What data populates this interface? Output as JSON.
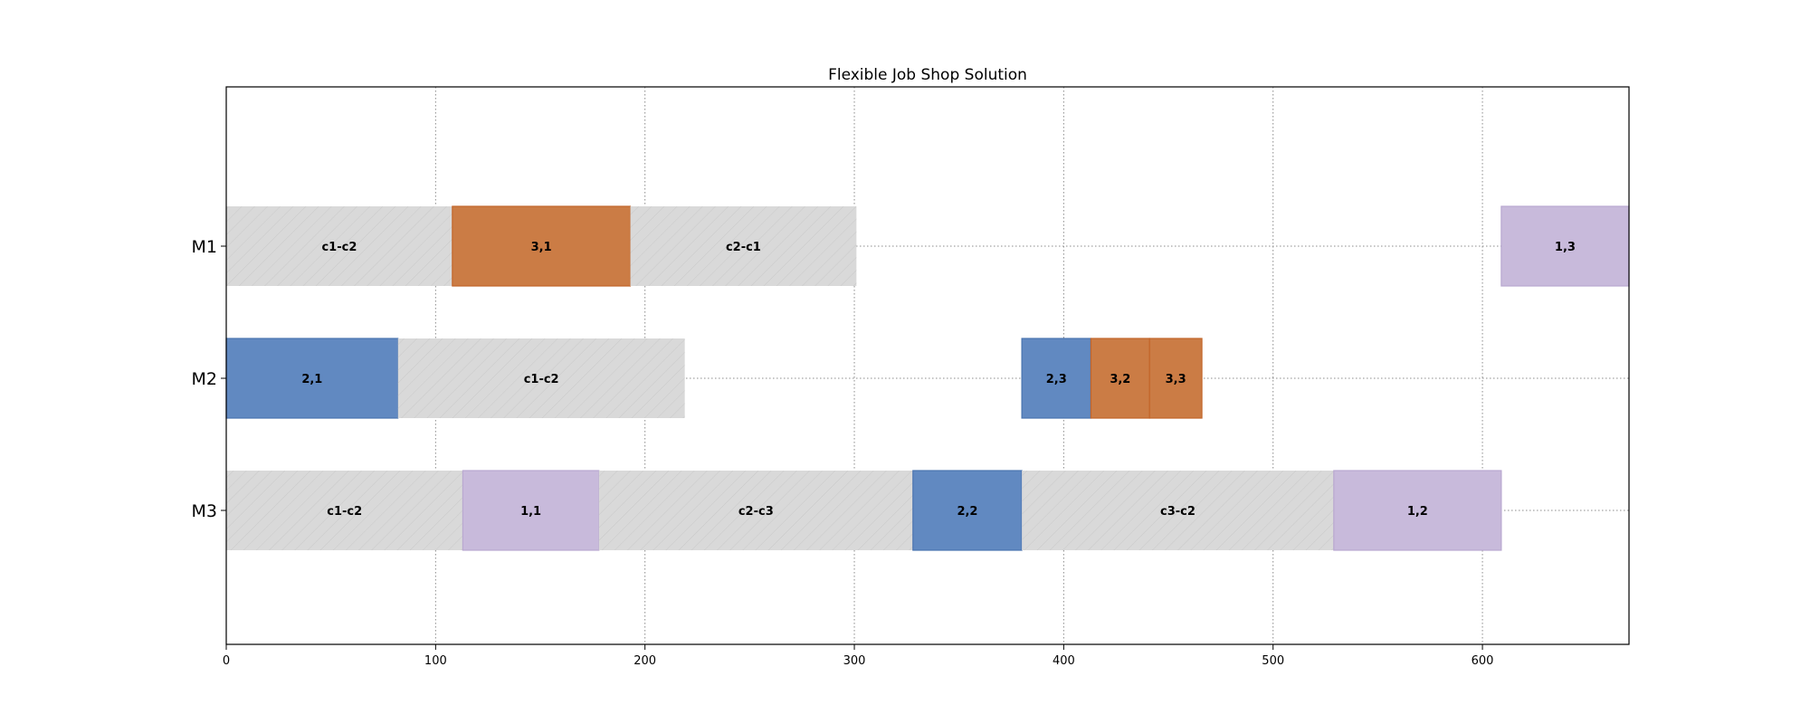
{
  "chart_data": {
    "type": "gantt",
    "title": "Flexible Job Shop Solution",
    "xlim": [
      0,
      670
    ],
    "xticks": [
      0,
      100,
      200,
      300,
      400,
      500,
      600
    ],
    "grid": true,
    "machines": [
      "M1",
      "M2",
      "M3"
    ],
    "colors": {
      "job1": "#c8badb",
      "job2": "#6189c1",
      "job3": "#cb7c45",
      "setup": "#d9d9d9"
    },
    "tasks": [
      {
        "machine": "M1",
        "label": "c1-c2",
        "kind": "setup",
        "start": 0,
        "end": 108
      },
      {
        "machine": "M1",
        "label": "3,1",
        "kind": "job3",
        "start": 108,
        "end": 193
      },
      {
        "machine": "M1",
        "label": "c2-c1",
        "kind": "setup",
        "start": 193,
        "end": 301
      },
      {
        "machine": "M1",
        "label": "1,3",
        "kind": "job1",
        "start": 609,
        "end": 670
      },
      {
        "machine": "M2",
        "label": "2,1",
        "kind": "job2",
        "start": 0,
        "end": 82
      },
      {
        "machine": "M2",
        "label": "c1-c2",
        "kind": "setup",
        "start": 82,
        "end": 219
      },
      {
        "machine": "M2",
        "label": "2,3",
        "kind": "job2",
        "start": 380,
        "end": 413
      },
      {
        "machine": "M2",
        "label": "3,2",
        "kind": "job3",
        "start": 413,
        "end": 441
      },
      {
        "machine": "M2",
        "label": "3,3",
        "kind": "job3",
        "start": 441,
        "end": 466
      },
      {
        "machine": "M3",
        "label": "c1-c2",
        "kind": "setup",
        "start": 0,
        "end": 113
      },
      {
        "machine": "M3",
        "label": "1,1",
        "kind": "job1",
        "start": 113,
        "end": 178
      },
      {
        "machine": "M3",
        "label": "c2-c3",
        "kind": "setup",
        "start": 178,
        "end": 328
      },
      {
        "machine": "M3",
        "label": "2,2",
        "kind": "job2",
        "start": 328,
        "end": 380
      },
      {
        "machine": "M3",
        "label": "c3-c2",
        "kind": "setup",
        "start": 380,
        "end": 529
      },
      {
        "machine": "M3",
        "label": "1,2",
        "kind": "job1",
        "start": 529,
        "end": 609
      }
    ]
  }
}
